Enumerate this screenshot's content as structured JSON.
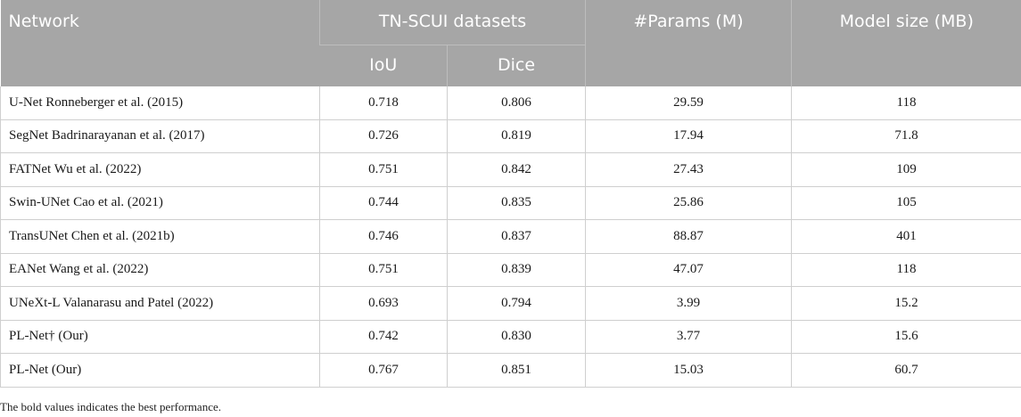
{
  "table": {
    "headers": {
      "network": "Network",
      "dataset_group": "TN-SCUI datasets",
      "iou": "IoU",
      "dice": "Dice",
      "params": "#Params (M)",
      "size": "Model size (MB)"
    },
    "colors": {
      "header_bg": "#a6a6a6",
      "best": "#b22222",
      "second": "#2e2e8a",
      "third": "#7aa86c"
    },
    "rows": [
      {
        "network": "U-Net Ronneberger et al. (2015)",
        "iou": "0.718",
        "dice": "0.806",
        "params": "29.59",
        "size": "118"
      },
      {
        "network": "SegNet Badrinarayanan et al. (2017)",
        "iou": "0.726",
        "dice": "0.819",
        "params": "17.94",
        "size": "71.8"
      },
      {
        "network": "FATNet Wu et al. (2022)",
        "iou": "0.751",
        "dice": "0.842",
        "params": "27.43",
        "size": "109"
      },
      {
        "network": "Swin-UNet Cao et al. (2021)",
        "iou": "0.744",
        "dice": "0.835",
        "params": "25.86",
        "size": "105"
      },
      {
        "network": "TransUNet Chen et al. (2021b)",
        "iou": "0.746",
        "dice": "0.837",
        "params": "88.87",
        "size": "401"
      },
      {
        "network": "EANet Wang et al. (2022)",
        "iou": "0.751",
        "dice": "0.839",
        "params": "47.07",
        "size": "118"
      },
      {
        "network": "UNeXt-L Valanarasu and Patel (2022)",
        "iou": "0.693",
        "dice": "0.794",
        "params": "3.99",
        "size": "15.2"
      },
      {
        "network": "PL-Net† (Our)",
        "iou": "0.742",
        "dice": "0.830",
        "params": "3.77",
        "size": "15.6"
      },
      {
        "network": "PL-Net (Our)",
        "iou": "0.767",
        "dice": "0.851",
        "params": "15.03",
        "size": "60.7"
      }
    ],
    "footnote": "The bold values indicates the best performance."
  }
}
